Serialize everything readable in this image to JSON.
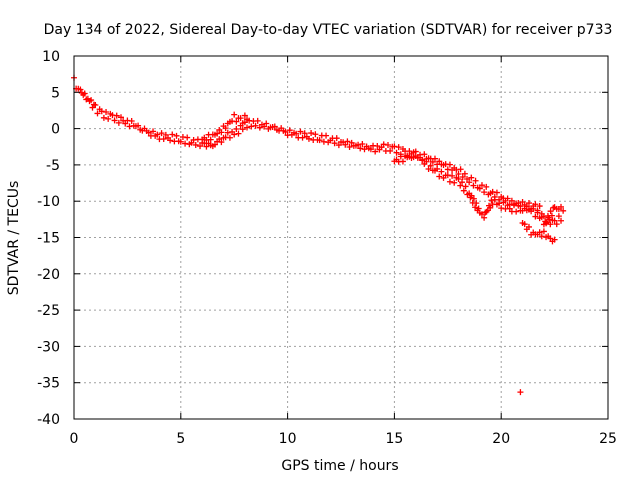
{
  "chart_data": {
    "type": "scatter",
    "title": "Day 134 of 2022, Sidereal Day-to-day VTEC variation (SDTVAR) for receiver p733",
    "xlabel": "GPS time / hours",
    "ylabel": "SDTVAR / TECUs",
    "xlim": [
      0,
      25
    ],
    "ylim": [
      -40,
      10
    ],
    "xticks": [
      0,
      5,
      10,
      15,
      20,
      25
    ],
    "yticks": [
      10,
      5,
      0,
      -5,
      -10,
      -15,
      -20,
      -25,
      -30,
      -35,
      -40
    ],
    "grid": true,
    "marker": "+",
    "colors": {
      "points": "#ff0000",
      "grid": "#a0a0a0",
      "frame": "#000000"
    },
    "trend_points": [
      {
        "x": 0.0,
        "y": 7.0
      },
      {
        "x": 0.1,
        "y": 5.5
      },
      {
        "x": 0.3,
        "y": 5.2
      },
      {
        "x": 0.5,
        "y": 4.5
      },
      {
        "x": 0.8,
        "y": 3.5
      },
      {
        "x": 1.0,
        "y": 2.8
      },
      {
        "x": 1.3,
        "y": 2.0
      },
      {
        "x": 1.8,
        "y": 1.6
      },
      {
        "x": 2.3,
        "y": 1.0
      },
      {
        "x": 2.8,
        "y": 0.5
      },
      {
        "x": 3.2,
        "y": 0.0
      },
      {
        "x": 3.6,
        "y": -0.6
      },
      {
        "x": 4.0,
        "y": -1.0
      },
      {
        "x": 4.5,
        "y": -1.2
      },
      {
        "x": 5.0,
        "y": -1.5
      },
      {
        "x": 5.5,
        "y": -1.8
      },
      {
        "x": 6.0,
        "y": -2.0
      },
      {
        "x": 6.4,
        "y": -2.5
      },
      {
        "x": 6.8,
        "y": -1.8
      },
      {
        "x": 7.2,
        "y": -1.0
      },
      {
        "x": 7.6,
        "y": -0.5
      },
      {
        "x": 8.0,
        "y": 0.5
      },
      {
        "x": 8.4,
        "y": 0.8
      },
      {
        "x": 8.8,
        "y": 0.5
      },
      {
        "x": 9.2,
        "y": 0.3
      },
      {
        "x": 9.6,
        "y": 0.0
      },
      {
        "x": 10.0,
        "y": -0.5
      },
      {
        "x": 10.5,
        "y": -0.8
      },
      {
        "x": 11.0,
        "y": -1.0
      },
      {
        "x": 11.5,
        "y": -1.3
      },
      {
        "x": 12.0,
        "y": -1.5
      },
      {
        "x": 12.5,
        "y": -1.9
      },
      {
        "x": 13.0,
        "y": -2.2
      },
      {
        "x": 13.5,
        "y": -2.5
      },
      {
        "x": 14.0,
        "y": -2.8
      },
      {
        "x": 14.5,
        "y": -2.6
      },
      {
        "x": 15.0,
        "y": -2.8
      },
      {
        "x": 15.5,
        "y": -3.3
      },
      {
        "x": 16.0,
        "y": -3.8
      },
      {
        "x": 16.5,
        "y": -4.0
      },
      {
        "x": 17.0,
        "y": -4.6
      },
      {
        "x": 17.5,
        "y": -5.2
      },
      {
        "x": 18.0,
        "y": -5.8
      },
      {
        "x": 18.5,
        "y": -7.0
      },
      {
        "x": 19.0,
        "y": -8.0
      },
      {
        "x": 19.5,
        "y": -8.8
      },
      {
        "x": 20.0,
        "y": -9.5
      },
      {
        "x": 20.5,
        "y": -10.2
      },
      {
        "x": 21.0,
        "y": -10.5
      },
      {
        "x": 21.5,
        "y": -11.5
      },
      {
        "x": 22.0,
        "y": -12.5
      },
      {
        "x": 22.5,
        "y": -13.0
      },
      {
        "x": 22.9,
        "y": -12.0
      }
    ],
    "branch_points": [
      {
        "x": 6.0,
        "y": -1.5
      },
      {
        "x": 6.5,
        "y": -1.0
      },
      {
        "x": 7.0,
        "y": 0.0
      },
      {
        "x": 7.5,
        "y": 1.5
      },
      {
        "x": 7.8,
        "y": 1.0
      },
      {
        "x": 8.2,
        "y": 1.8
      },
      {
        "x": 15.0,
        "y": -4.5
      },
      {
        "x": 15.5,
        "y": -4.0
      },
      {
        "x": 16.0,
        "y": -3.5
      },
      {
        "x": 16.5,
        "y": -5.0
      },
      {
        "x": 17.0,
        "y": -6.0
      },
      {
        "x": 17.5,
        "y": -6.8
      },
      {
        "x": 18.0,
        "y": -7.2
      },
      {
        "x": 18.5,
        "y": -9.0
      },
      {
        "x": 19.0,
        "y": -11.5
      },
      {
        "x": 19.2,
        "y": -12.0
      },
      {
        "x": 19.6,
        "y": -10.0
      },
      {
        "x": 20.0,
        "y": -10.5
      },
      {
        "x": 20.5,
        "y": -11.0
      },
      {
        "x": 21.0,
        "y": -11.0
      },
      {
        "x": 21.5,
        "y": -10.5
      },
      {
        "x": 22.0,
        "y": -11.5
      },
      {
        "x": 21.0,
        "y": -13.0
      },
      {
        "x": 21.5,
        "y": -14.5
      },
      {
        "x": 22.0,
        "y": -14.5
      },
      {
        "x": 22.6,
        "y": -15.8
      },
      {
        "x": 22.0,
        "y": -13.2
      },
      {
        "x": 22.5,
        "y": -11.0
      },
      {
        "x": 23.0,
        "y": -11.0
      }
    ],
    "outliers": [
      {
        "x": 20.9,
        "y": -36.3
      }
    ]
  }
}
